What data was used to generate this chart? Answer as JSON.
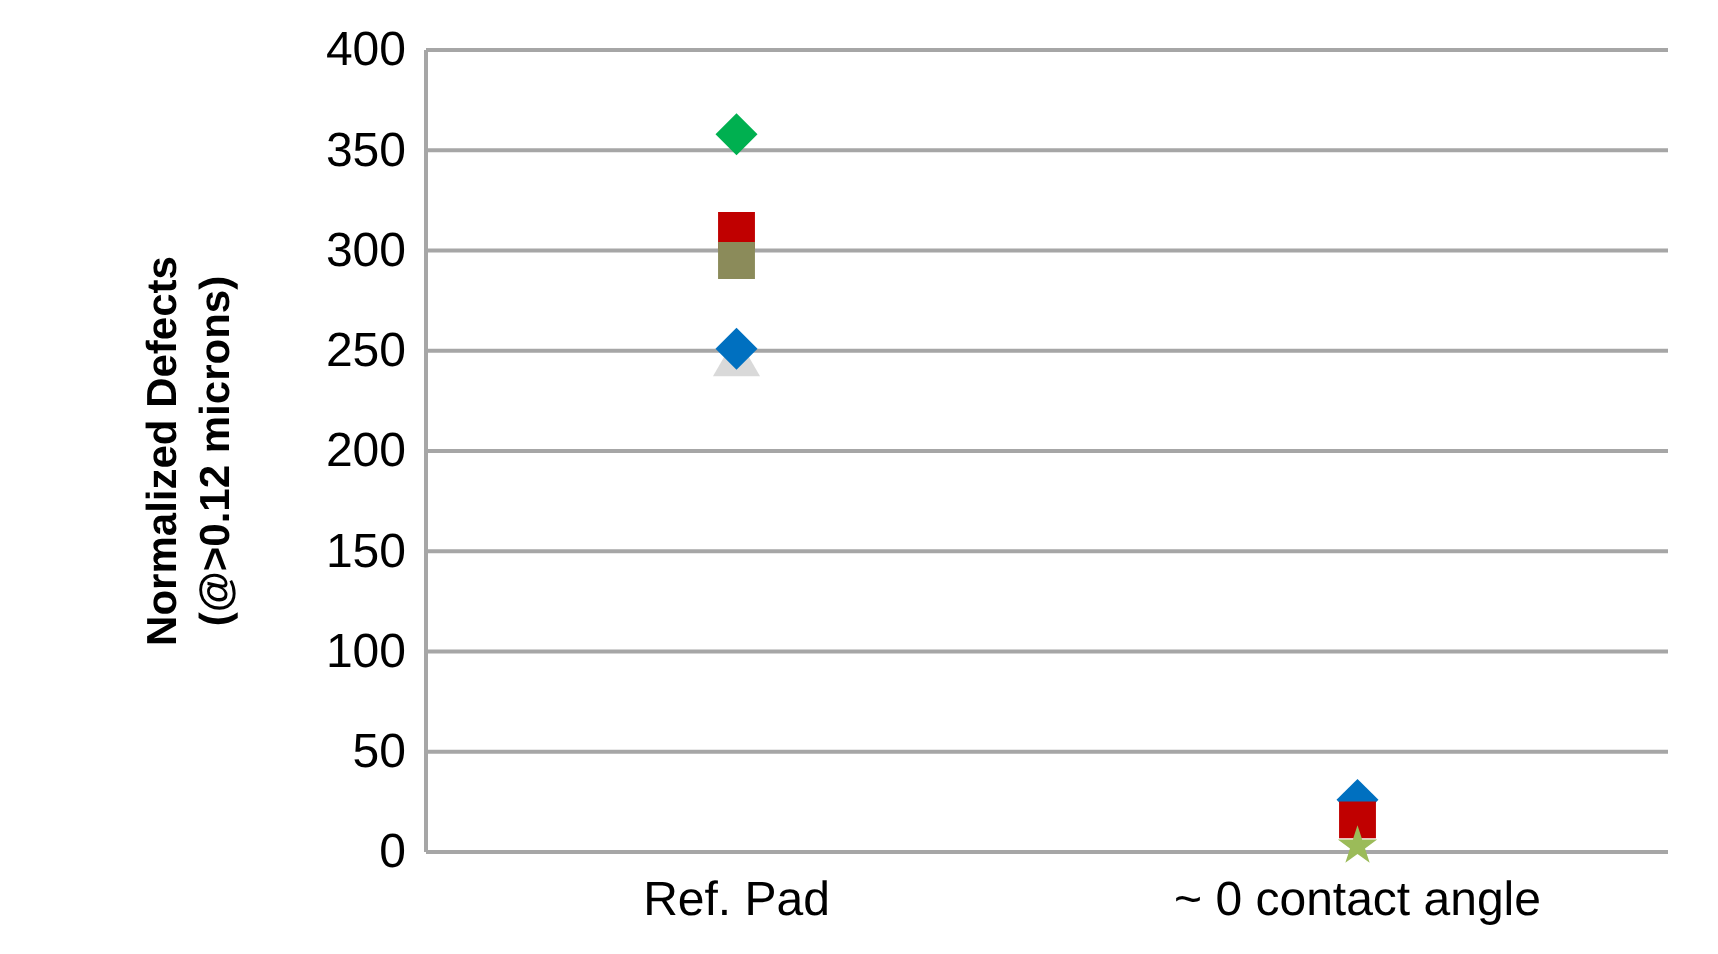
{
  "chart_data": {
    "type": "scatter",
    "ylabel": "Normalized Defects (@>0.12 microns)",
    "categories": [
      "Ref. Pad",
      "~ 0 contact angle"
    ],
    "series": [
      {
        "color": "#d9d9d9",
        "marker": "triangle",
        "values": [
          244,
          null
        ]
      },
      {
        "color": "#0070c0",
        "marker": "diamond",
        "values": [
          251,
          26
        ]
      },
      {
        "color": "#c00000",
        "marker": "square",
        "values": [
          310,
          16
        ]
      },
      {
        "color": "#8b8b5a",
        "marker": "square",
        "values": [
          295,
          null
        ]
      },
      {
        "color": "#00b050",
        "marker": "diamond",
        "values": [
          358,
          null
        ]
      },
      {
        "color": "#9bbb59",
        "marker": "star",
        "values": [
          null,
          3
        ]
      }
    ],
    "ylim": [
      0,
      400
    ],
    "yticks": [
      0,
      50,
      100,
      150,
      200,
      250,
      300,
      350,
      400
    ],
    "grid": "y"
  }
}
